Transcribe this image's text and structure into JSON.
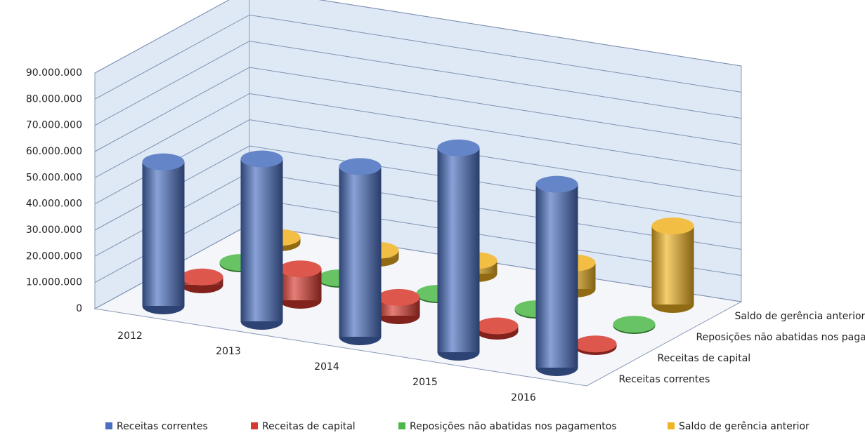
{
  "chart_data": {
    "type": "cylinder3d",
    "categories": [
      "2012",
      "2013",
      "2014",
      "2015",
      "2016"
    ],
    "series": [
      {
        "name": "Receitas correntes",
        "color": "#4a6fc0",
        "values": [
          55000000,
          62000000,
          65000000,
          78000000,
          70000000
        ]
      },
      {
        "name": "Receitas de capital",
        "color": "#d8392e",
        "values": [
          3000000,
          12000000,
          7000000,
          2000000,
          1000000
        ]
      },
      {
        "name": "Reposições não abatidas nos pagamentos",
        "color": "#4cb848",
        "values": [
          500000,
          500000,
          500000,
          500000,
          500000
        ]
      },
      {
        "name": "Saldo de gerência anterior",
        "color": "#f0b322",
        "values": [
          2000000,
          3000000,
          5000000,
          10000000,
          30000000
        ]
      }
    ],
    "ylim": [
      0,
      90000000
    ],
    "yticks": [
      0,
      {
        "value": 10000000,
        "label": "10.000.000"
      },
      {
        "value": 20000000,
        "label": "20.000.000"
      },
      {
        "value": 30000000,
        "label": "30.000.000"
      },
      {
        "value": 40000000,
        "label": "40.000.000"
      },
      {
        "value": 50000000,
        "label": "50.000.000"
      },
      {
        "value": 60000000,
        "label": "60.000.000"
      },
      {
        "value": 70000000,
        "label": "70.000.000"
      },
      {
        "value": 80000000,
        "label": "80.000.000"
      },
      {
        "value": 90000000,
        "label": "90.000.000"
      }
    ],
    "grid": true,
    "legend": "bottom"
  }
}
